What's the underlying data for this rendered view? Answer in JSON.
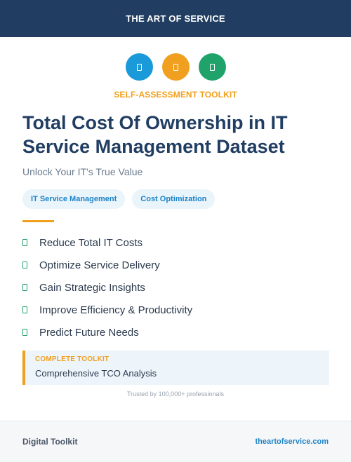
{
  "header": {
    "brand": "THE ART OF SERVICE"
  },
  "icons": [
    {
      "name": "document-icon",
      "color": "#1a9ad8"
    },
    {
      "name": "document-icon",
      "color": "#f0a01e"
    },
    {
      "name": "document-icon",
      "color": "#1fa36a"
    }
  ],
  "kicker": "SELF-ASSESSMENT TOOLKIT",
  "title": "Total Cost Of Ownership in IT Service Management Dataset",
  "subtitle": "Unlock Your IT's True Value",
  "tags": [
    "IT Service Management",
    "Cost Optimization"
  ],
  "features": [
    "Reduce Total IT Costs",
    "Optimize Service Delivery",
    "Gain Strategic Insights",
    "Improve Efficiency & Productivity",
    "Predict Future Needs"
  ],
  "callout": {
    "label": "COMPLETE TOOLKIT",
    "value": "Comprehensive TCO Analysis"
  },
  "trusted": "Trusted by 100,000+ professionals",
  "footer": {
    "left": "Digital Toolkit",
    "right": "theartofservice.com"
  },
  "colors": {
    "navy": "#213e62",
    "accent_orange": "#f0a01e",
    "accent_blue": "#1c83c6",
    "accent_green": "#22a06b"
  }
}
